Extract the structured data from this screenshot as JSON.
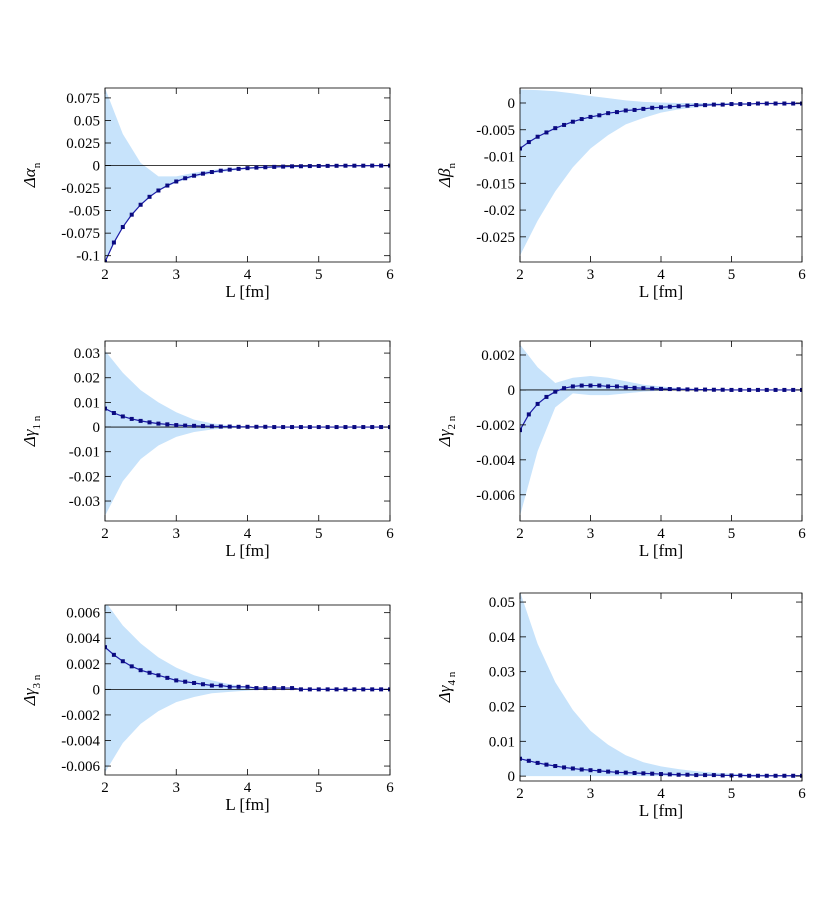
{
  "chart_data": [
    {
      "type": "line",
      "ylabel": "Δα",
      "ylabel_sub": "n",
      "xlabel": "L [fm]",
      "color": "#1c1ca6",
      "band_color": "#c7e3fb",
      "zero_line": true,
      "xlim": [
        2,
        6
      ],
      "xticks": [
        2,
        3,
        4,
        5,
        6
      ],
      "ylim": [
        -0.107,
        0.086
      ],
      "yticks": [
        -0.1,
        -0.075,
        -0.05,
        -0.025,
        0,
        0.025,
        0.05,
        0.075
      ],
      "x": [
        2,
        2.125,
        2.25,
        2.375,
        2.5,
        2.625,
        2.75,
        2.875,
        3,
        3.125,
        3.25,
        3.375,
        3.5,
        3.625,
        3.75,
        3.875,
        4,
        4.125,
        4.25,
        4.375,
        4.5,
        4.625,
        4.75,
        4.875,
        5,
        5.125,
        5.25,
        5.375,
        5.5,
        5.625,
        5.75,
        5.875,
        6
      ],
      "values": [
        -0.107,
        -0.0854,
        -0.0682,
        -0.0545,
        -0.0435,
        -0.0347,
        -0.0277,
        -0.0222,
        -0.0177,
        -0.0141,
        -0.0113,
        -0.009,
        -0.0072,
        -0.0057,
        -0.0046,
        -0.0037,
        -0.0029,
        -0.0023,
        -0.0019,
        -0.0015,
        -0.0012,
        -0.0009,
        -0.0008,
        -0.0006,
        -0.0005,
        -0.0004,
        -0.0003,
        -0.0002,
        -0.0002,
        -0.0002,
        -0.0001,
        -0.0001,
        -0.0001
      ],
      "band_x": [
        2,
        2.25,
        2.5,
        2.75,
        3,
        3.25,
        3.5,
        3.75,
        4,
        4.25,
        4.5,
        4.75,
        5,
        5.25,
        5.5,
        5.75,
        6
      ],
      "band_upper": [
        0.086,
        0.035,
        0.003,
        -0.012,
        -0.012,
        -0.008,
        -0.005,
        -0.003,
        -0.002,
        -0.001,
        -0.001,
        -0.0005,
        -0.0003,
        -0.0002,
        -0.0001,
        0,
        0
      ],
      "band_lower": [
        -0.107,
        -0.068,
        -0.044,
        -0.028,
        -0.019,
        -0.013,
        -0.009,
        -0.006,
        -0.004,
        -0.003,
        -0.002,
        -0.002,
        -0.001,
        -0.0007,
        -0.0005,
        -0.0003,
        -0.0002
      ]
    },
    {
      "type": "line",
      "ylabel": "Δβ",
      "ylabel_sub": "n",
      "xlabel": "L [fm]",
      "color": "#1c1ca6",
      "band_color": "#c7e3fb",
      "zero_line": false,
      "xlim": [
        2,
        6
      ],
      "xticks": [
        2,
        3,
        4,
        5,
        6
      ],
      "ylim": [
        -0.0297,
        0.0028
      ],
      "yticks": [
        -0.025,
        -0.02,
        -0.015,
        -0.01,
        -0.005,
        0
      ],
      "x": [
        2,
        2.125,
        2.25,
        2.375,
        2.5,
        2.625,
        2.75,
        2.875,
        3,
        3.125,
        3.25,
        3.375,
        3.5,
        3.625,
        3.75,
        3.875,
        4,
        4.125,
        4.25,
        4.375,
        4.5,
        4.625,
        4.75,
        4.875,
        5,
        5.125,
        5.25,
        5.375,
        5.5,
        5.625,
        5.75,
        5.875,
        6
      ],
      "values": [
        -0.0085,
        -0.0073,
        -0.0063,
        -0.0055,
        -0.0047,
        -0.0041,
        -0.0035,
        -0.003,
        -0.0026,
        -0.0023,
        -0.0019,
        -0.0017,
        -0.0014,
        -0.0013,
        -0.0011,
        -0.0009,
        -0.0008,
        -0.0007,
        -0.0006,
        -0.0005,
        -0.0004,
        -0.0004,
        -0.0003,
        -0.0003,
        -0.0002,
        -0.0002,
        -0.0002,
        -0.0001,
        -0.0001,
        -0.0001,
        -0.0001,
        -0.0001,
        -0.0001
      ],
      "band_x": [
        2,
        2.25,
        2.5,
        2.75,
        3,
        3.25,
        3.5,
        3.75,
        4,
        4.25,
        4.5,
        4.75,
        5,
        5.25,
        5.5,
        5.75,
        6
      ],
      "band_upper": [
        0.0025,
        0.0024,
        0.0022,
        0.0018,
        0.0013,
        0.0009,
        0.0005,
        0.0002,
        0.0001,
        0,
        0,
        0,
        0,
        0,
        0,
        0,
        0
      ],
      "band_lower": [
        -0.0285,
        -0.022,
        -0.0165,
        -0.012,
        -0.0085,
        -0.006,
        -0.004,
        -0.0028,
        -0.0018,
        -0.0012,
        -0.0008,
        -0.0005,
        -0.0003,
        -0.0002,
        -0.0001,
        -0.0001,
        0
      ]
    },
    {
      "type": "line",
      "ylabel": "Δγ",
      "ylabel_sub": "1 n",
      "xlabel": "L [fm]",
      "color": "#1c1ca6",
      "band_color": "#c7e3fb",
      "zero_line": true,
      "xlim": [
        2,
        6
      ],
      "xticks": [
        2,
        3,
        4,
        5,
        6
      ],
      "ylim": [
        -0.0381,
        0.0349
      ],
      "yticks": [
        -0.03,
        -0.02,
        -0.01,
        0,
        0.01,
        0.02,
        0.03
      ],
      "x": [
        2,
        2.125,
        2.25,
        2.375,
        2.5,
        2.625,
        2.75,
        2.875,
        3,
        3.125,
        3.25,
        3.375,
        3.5,
        3.625,
        3.75,
        3.875,
        4,
        4.125,
        4.25,
        4.375,
        4.5,
        4.625,
        4.75,
        4.875,
        5,
        5.125,
        5.25,
        5.375,
        5.5,
        5.625,
        5.75,
        5.875,
        6
      ],
      "values": [
        0.0075,
        0.0057,
        0.0043,
        0.0033,
        0.0025,
        0.0019,
        0.0014,
        0.0011,
        0.0008,
        0.0006,
        0.0005,
        0.0004,
        0.0003,
        0.0002,
        0.0002,
        0.0001,
        0.0001,
        0.0001,
        0.0001,
        0,
        0,
        0,
        0,
        0,
        0,
        0,
        0,
        0,
        0,
        0,
        0,
        0,
        0
      ],
      "band_x": [
        2,
        2.25,
        2.5,
        2.75,
        3,
        3.25,
        3.5,
        3.75,
        4,
        4.25,
        4.5,
        4.75,
        5,
        5.25,
        5.5,
        5.75,
        6
      ],
      "band_upper": [
        0.031,
        0.022,
        0.015,
        0.01,
        0.006,
        0.003,
        0.0015,
        0.0007,
        0.0003,
        0.0001,
        0,
        0,
        0,
        0,
        0,
        0,
        0
      ],
      "band_lower": [
        -0.036,
        -0.022,
        -0.013,
        -0.0075,
        -0.004,
        -0.002,
        -0.001,
        -0.0005,
        -0.0002,
        -0.0001,
        0,
        0,
        0,
        0,
        0,
        0,
        0
      ]
    },
    {
      "type": "line",
      "ylabel": "Δγ",
      "ylabel_sub": "2 n",
      "xlabel": "L [fm]",
      "color": "#1c1ca6",
      "band_color": "#c7e3fb",
      "zero_line": true,
      "xlim": [
        2,
        6
      ],
      "xticks": [
        2,
        3,
        4,
        5,
        6
      ],
      "ylim": [
        -0.0075,
        0.0028
      ],
      "yticks": [
        -0.006,
        -0.004,
        -0.002,
        0,
        0.002
      ],
      "x": [
        2,
        2.125,
        2.25,
        2.375,
        2.5,
        2.625,
        2.75,
        2.875,
        3,
        3.125,
        3.25,
        3.375,
        3.5,
        3.625,
        3.75,
        3.875,
        4,
        4.125,
        4.25,
        4.375,
        4.5,
        4.625,
        4.75,
        4.875,
        5,
        5.125,
        5.25,
        5.375,
        5.5,
        5.625,
        5.75,
        5.875,
        6
      ],
      "values": [
        -0.0023,
        -0.0014,
        -0.0008,
        -0.0004,
        -0.0001,
        0.0001,
        0.0002,
        0.00025,
        0.00025,
        0.00025,
        0.0002,
        0.0002,
        0.00015,
        0.00012,
        0.0001,
        8e-05,
        6e-05,
        5e-05,
        4e-05,
        3e-05,
        2e-05,
        2e-05,
        1e-05,
        1e-05,
        0,
        0,
        0,
        0,
        0,
        0,
        0,
        0,
        0
      ],
      "band_x": [
        2,
        2.25,
        2.5,
        2.75,
        3,
        3.25,
        3.5,
        3.75,
        4,
        4.25,
        4.5,
        4.75,
        5,
        5.25,
        5.5,
        5.75,
        6
      ],
      "band_upper": [
        0.0026,
        0.0013,
        0.0004,
        0.0007,
        0.0008,
        0.0007,
        0.0005,
        0.0003,
        0.0002,
        0.0001,
        5e-05,
        0,
        0,
        0,
        0,
        0,
        0
      ],
      "band_lower": [
        -0.0072,
        -0.0035,
        -0.001,
        -0.0002,
        -0.0003,
        -0.0003,
        -0.0002,
        -0.0001,
        -5e-05,
        0,
        0,
        0,
        0,
        0,
        0,
        0,
        0
      ]
    },
    {
      "type": "line",
      "ylabel": "Δγ",
      "ylabel_sub": "3 n",
      "xlabel": "L [fm]",
      "color": "#1c1ca6",
      "band_color": "#c7e3fb",
      "zero_line": true,
      "xlim": [
        2,
        6
      ],
      "xticks": [
        2,
        3,
        4,
        5,
        6
      ],
      "ylim": [
        -0.0067,
        0.0066
      ],
      "yticks": [
        -0.006,
        -0.004,
        -0.002,
        0,
        0.002,
        0.004,
        0.006
      ],
      "x": [
        2,
        2.125,
        2.25,
        2.375,
        2.5,
        2.625,
        2.75,
        2.875,
        3,
        3.125,
        3.25,
        3.375,
        3.5,
        3.625,
        3.75,
        3.875,
        4,
        4.125,
        4.25,
        4.375,
        4.5,
        4.625,
        4.75,
        4.875,
        5,
        5.125,
        5.25,
        5.375,
        5.5,
        5.625,
        5.75,
        5.875,
        6
      ],
      "values": [
        0.0033,
        0.0027,
        0.0022,
        0.0018,
        0.0015,
        0.0013,
        0.0011,
        0.0009,
        0.0007,
        0.0006,
        0.0005,
        0.0004,
        0.0003,
        0.0003,
        0.0002,
        0.0002,
        0.0002,
        0.0001,
        0.0001,
        0.0001,
        0.0001,
        0.0001,
        0,
        0,
        0,
        0,
        0,
        0,
        0,
        0,
        0,
        0,
        0
      ],
      "band_x": [
        2,
        2.25,
        2.5,
        2.75,
        3,
        3.25,
        3.5,
        3.75,
        4,
        4.25,
        4.5,
        4.75,
        5,
        5.25,
        5.5,
        5.75,
        6
      ],
      "band_upper": [
        0.0069,
        0.005,
        0.0036,
        0.0025,
        0.0017,
        0.0011,
        0.0007,
        0.0004,
        0.0002,
        0.0001,
        5e-05,
        0,
        0,
        0,
        0,
        0,
        0
      ],
      "band_lower": [
        -0.0065,
        -0.0042,
        -0.0027,
        -0.0017,
        -0.001,
        -0.0006,
        -0.0003,
        -0.0002,
        -0.0001,
        0,
        0,
        0,
        0,
        0,
        0,
        0,
        0
      ]
    },
    {
      "type": "line",
      "ylabel": "Δγ",
      "ylabel_sub": "4 n",
      "xlabel": "L [fm]",
      "color": "#1c1ca6",
      "band_color": "#c7e3fb",
      "zero_line": false,
      "xlim": [
        2,
        6
      ],
      "xticks": [
        2,
        3,
        4,
        5,
        6
      ],
      "ylim": [
        -0.0014,
        0.0526
      ],
      "yticks": [
        0,
        0.01,
        0.02,
        0.03,
        0.04,
        0.05
      ],
      "x": [
        2,
        2.125,
        2.25,
        2.375,
        2.5,
        2.625,
        2.75,
        2.875,
        3,
        3.125,
        3.25,
        3.375,
        3.5,
        3.625,
        3.75,
        3.875,
        4,
        4.125,
        4.25,
        4.375,
        4.5,
        4.625,
        4.75,
        4.875,
        5,
        5.125,
        5.25,
        5.375,
        5.5,
        5.625,
        5.75,
        5.875,
        6
      ],
      "values": [
        0.005,
        0.0044,
        0.0038,
        0.0033,
        0.0029,
        0.0025,
        0.0022,
        0.0019,
        0.0017,
        0.0015,
        0.0013,
        0.0011,
        0.001,
        0.0009,
        0.0008,
        0.0007,
        0.0006,
        0.0005,
        0.0004,
        0.0004,
        0.0003,
        0.0003,
        0.0003,
        0.0002,
        0.0002,
        0.0002,
        0.0001,
        0.0001,
        0.0001,
        0.0001,
        0.0001,
        0.0001,
        0.0001
      ],
      "band_x": [
        2,
        2.25,
        2.5,
        2.75,
        3,
        3.25,
        3.5,
        3.75,
        4,
        4.25,
        4.5,
        4.75,
        5,
        5.25,
        5.5,
        5.75,
        6
      ],
      "band_upper": [
        0.053,
        0.038,
        0.027,
        0.019,
        0.013,
        0.009,
        0.006,
        0.004,
        0.0028,
        0.002,
        0.0014,
        0.001,
        0.0007,
        0.0005,
        0.0004,
        0.0003,
        0.0002
      ],
      "band_lower": [
        0,
        0,
        0,
        0,
        0,
        0,
        0,
        0,
        0,
        0,
        0,
        0,
        0,
        0,
        0,
        0,
        0
      ]
    }
  ]
}
